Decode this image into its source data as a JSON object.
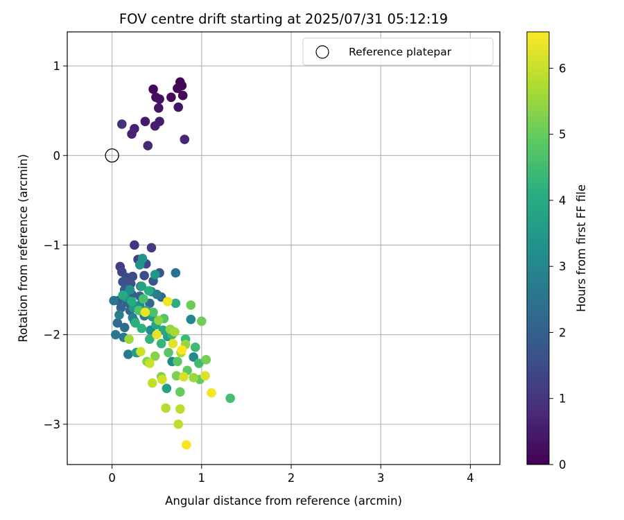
{
  "chart_data": {
    "type": "scatter",
    "title": "FOV centre drift starting at 2025/07/31 05:12:19",
    "xlabel": "Angular distance from reference (arcmin)",
    "ylabel": "Rotation from reference (arcmin)",
    "xlim": [
      -0.5,
      4.33
    ],
    "ylim": [
      -3.45,
      1.38
    ],
    "xticks": [
      0,
      1,
      2,
      3,
      4
    ],
    "yticks": [
      -3,
      -2,
      -1,
      0,
      1
    ],
    "xtick_labels": [
      "0",
      "1",
      "2",
      "3",
      "4"
    ],
    "ytick_labels": [
      "−3",
      "−2",
      "−1",
      "0",
      "1"
    ],
    "grid": true,
    "legend": {
      "entries": [
        "Reference platepar"
      ],
      "placement": "upper right"
    },
    "colorbar": {
      "label": "Hours from first FF file",
      "colormap": "viridis",
      "range": [
        0,
        6.55
      ],
      "ticks": [
        0,
        1,
        2,
        3,
        4,
        5,
        6
      ],
      "tick_labels": [
        "0",
        "1",
        "2",
        "3",
        "4",
        "5",
        "6"
      ]
    },
    "reference": {
      "name": "Reference platepar",
      "x": 0,
      "y": 0
    },
    "points": [
      [
        0.46,
        0.74,
        0.1
      ],
      [
        0.78,
        0.78,
        0.05
      ],
      [
        0.76,
        0.82,
        0.08
      ],
      [
        0.73,
        0.75,
        0.12
      ],
      [
        0.79,
        0.67,
        0.15
      ],
      [
        0.66,
        0.65,
        0.2
      ],
      [
        0.49,
        0.65,
        0.25
      ],
      [
        0.53,
        0.63,
        0.3
      ],
      [
        0.52,
        0.53,
        0.35
      ],
      [
        0.74,
        0.54,
        0.4
      ],
      [
        0.37,
        0.38,
        0.45
      ],
      [
        0.53,
        0.38,
        0.5
      ],
      [
        0.48,
        0.33,
        0.55
      ],
      [
        0.25,
        0.3,
        0.6
      ],
      [
        0.22,
        0.24,
        0.65
      ],
      [
        0.81,
        0.18,
        0.7
      ],
      [
        0.4,
        0.11,
        0.75
      ],
      [
        0.11,
        0.35,
        0.9
      ],
      [
        0.25,
        -1.0,
        1.0
      ],
      [
        0.44,
        -1.03,
        1.1
      ],
      [
        0.09,
        -1.24,
        1.2
      ],
      [
        0.29,
        -1.16,
        1.3
      ],
      [
        0.38,
        -1.21,
        1.35
      ],
      [
        0.11,
        -1.3,
        1.4
      ],
      [
        0.16,
        -1.36,
        1.45
      ],
      [
        0.23,
        -1.35,
        1.5
      ],
      [
        0.36,
        -1.34,
        1.55
      ],
      [
        0.12,
        -1.41,
        1.6
      ],
      [
        0.21,
        -1.43,
        1.65
      ],
      [
        0.32,
        -1.46,
        1.7
      ],
      [
        0.53,
        -1.31,
        1.75
      ],
      [
        0.46,
        -1.4,
        1.8
      ],
      [
        0.14,
        -1.5,
        1.85
      ],
      [
        0.07,
        -1.62,
        1.9
      ],
      [
        0.22,
        -1.55,
        1.95
      ],
      [
        0.17,
        -1.64,
        2.0
      ],
      [
        0.31,
        -1.57,
        2.05
      ],
      [
        0.1,
        -1.7,
        2.1
      ],
      [
        0.2,
        -1.73,
        2.15
      ],
      [
        0.42,
        -1.65,
        2.2
      ],
      [
        0.55,
        -1.58,
        2.25
      ],
      [
        0.06,
        -1.87,
        2.3
      ],
      [
        0.14,
        -1.92,
        2.35
      ],
      [
        0.25,
        -1.85,
        2.4
      ],
      [
        0.71,
        -1.31,
        2.45
      ],
      [
        0.02,
        -1.62,
        2.5
      ],
      [
        0.04,
        -2.0,
        2.55
      ],
      [
        0.13,
        -2.03,
        2.6
      ],
      [
        0.18,
        -2.22,
        2.65
      ],
      [
        0.28,
        -2.2,
        2.7
      ],
      [
        0.5,
        -1.55,
        2.75
      ],
      [
        0.36,
        -1.79,
        2.8
      ],
      [
        0.08,
        -1.78,
        2.85
      ],
      [
        0.23,
        -1.81,
        2.9
      ],
      [
        0.44,
        -1.52,
        2.95
      ],
      [
        0.88,
        -1.83,
        3.0
      ],
      [
        0.91,
        -2.25,
        3.05
      ],
      [
        0.67,
        -2.3,
        3.1
      ],
      [
        0.43,
        -1.95,
        3.15
      ],
      [
        0.31,
        -1.67,
        3.2
      ],
      [
        0.2,
        -1.5,
        3.25
      ],
      [
        0.15,
        -1.58,
        3.3
      ],
      [
        0.34,
        -1.15,
        3.35
      ],
      [
        0.31,
        -1.22,
        3.4
      ],
      [
        0.48,
        -1.33,
        3.45
      ],
      [
        0.24,
        -1.7,
        3.5
      ],
      [
        0.45,
        -1.8,
        3.55
      ],
      [
        0.62,
        -2.02,
        3.6
      ],
      [
        0.27,
        -2.2,
        3.65
      ],
      [
        0.61,
        -2.6,
        3.7
      ],
      [
        0.33,
        -1.46,
        3.75
      ],
      [
        0.38,
        -1.73,
        3.8
      ],
      [
        0.49,
        -1.89,
        3.85
      ],
      [
        0.57,
        -1.95,
        3.9
      ],
      [
        0.12,
        -1.56,
        3.95
      ],
      [
        0.22,
        -1.63,
        4.0
      ],
      [
        0.41,
        -1.51,
        4.05
      ],
      [
        0.71,
        -1.65,
        4.1
      ],
      [
        0.26,
        -1.87,
        4.15
      ],
      [
        0.33,
        -1.93,
        4.2
      ],
      [
        0.42,
        -2.05,
        4.25
      ],
      [
        0.55,
        -2.1,
        4.3
      ],
      [
        0.67,
        -2.0,
        4.35
      ],
      [
        0.82,
        -2.05,
        4.4
      ],
      [
        0.93,
        -2.14,
        4.45
      ],
      [
        0.97,
        -2.32,
        4.5
      ],
      [
        1.32,
        -2.71,
        4.55
      ],
      [
        0.35,
        -1.6,
        4.6
      ],
      [
        0.46,
        -1.75,
        4.65
      ],
      [
        0.3,
        -1.73,
        4.7
      ],
      [
        0.58,
        -1.82,
        4.75
      ],
      [
        0.63,
        -2.2,
        4.8
      ],
      [
        0.73,
        -2.3,
        4.85
      ],
      [
        0.84,
        -2.4,
        4.9
      ],
      [
        0.98,
        -2.5,
        4.95
      ],
      [
        0.76,
        -2.64,
        5.0
      ],
      [
        0.88,
        -1.67,
        5.05
      ],
      [
        1.0,
        -1.85,
        5.1
      ],
      [
        1.05,
        -2.28,
        5.15
      ],
      [
        0.72,
        -2.46,
        5.2
      ],
      [
        0.55,
        -2.47,
        5.25
      ],
      [
        0.48,
        -2.24,
        5.3
      ],
      [
        0.39,
        -2.3,
        5.35
      ],
      [
        0.52,
        -1.84,
        5.4
      ],
      [
        0.65,
        -1.94,
        5.45
      ],
      [
        0.82,
        -2.11,
        5.5
      ],
      [
        0.91,
        -2.48,
        5.55
      ],
      [
        0.19,
        -2.05,
        5.6
      ],
      [
        0.7,
        -1.97,
        5.65
      ],
      [
        0.77,
        -2.2,
        5.7
      ],
      [
        0.6,
        -2.82,
        5.8
      ],
      [
        0.76,
        -2.83,
        5.85
      ],
      [
        0.74,
        -3.0,
        5.9
      ],
      [
        0.45,
        -2.54,
        5.95
      ],
      [
        0.42,
        -2.32,
        6.0
      ],
      [
        0.32,
        -2.19,
        6.05
      ],
      [
        0.56,
        -2.5,
        6.1
      ],
      [
        0.8,
        -2.47,
        6.15
      ],
      [
        1.04,
        -2.46,
        6.2
      ],
      [
        0.68,
        -2.1,
        6.25
      ],
      [
        0.5,
        -2.0,
        6.3
      ],
      [
        0.37,
        -1.75,
        6.35
      ],
      [
        0.62,
        -1.63,
        6.4
      ],
      [
        1.11,
        -2.65,
        6.45
      ],
      [
        0.83,
        -3.23,
        6.5
      ],
      [
        0.78,
        -2.17,
        6.55
      ]
    ]
  }
}
